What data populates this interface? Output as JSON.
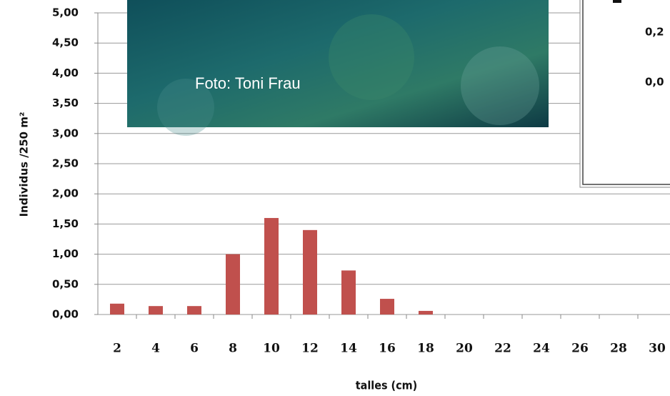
{
  "chart_data": {
    "type": "bar",
    "x_label": "talles (cm)",
    "y_label": "Individus /250 m²",
    "categories": [
      "2",
      "4",
      "6",
      "8",
      "10",
      "12",
      "14",
      "16",
      "18",
      "20",
      "22",
      "24",
      "26",
      "28",
      "30"
    ],
    "values": [
      0.18,
      0.14,
      0.14,
      1.0,
      1.6,
      1.4,
      0.73,
      0.26,
      0.06,
      0,
      0,
      0,
      0,
      0,
      0
    ],
    "color": "#c0504d",
    "ylim": [
      0,
      5
    ],
    "yticks": [
      {
        "value": 0,
        "label": "0,00"
      },
      {
        "value": 0.5,
        "label": "0,50"
      },
      {
        "value": 1,
        "label": "1,00"
      },
      {
        "value": 1.5,
        "label": "1,50"
      },
      {
        "value": 2,
        "label": "2,00"
      },
      {
        "value": 2.5,
        "label": "2,50"
      },
      {
        "value": 3,
        "label": "3,00"
      },
      {
        "value": 3.5,
        "label": "3,50"
      },
      {
        "value": 4,
        "label": "4,00"
      },
      {
        "value": 4.5,
        "label": "4,50"
      },
      {
        "value": 5,
        "label": "5,00"
      }
    ],
    "grid": true,
    "photo_credit": "Foto: Toni Frau",
    "inset_labels": [
      "0,2",
      "0,0"
    ]
  }
}
